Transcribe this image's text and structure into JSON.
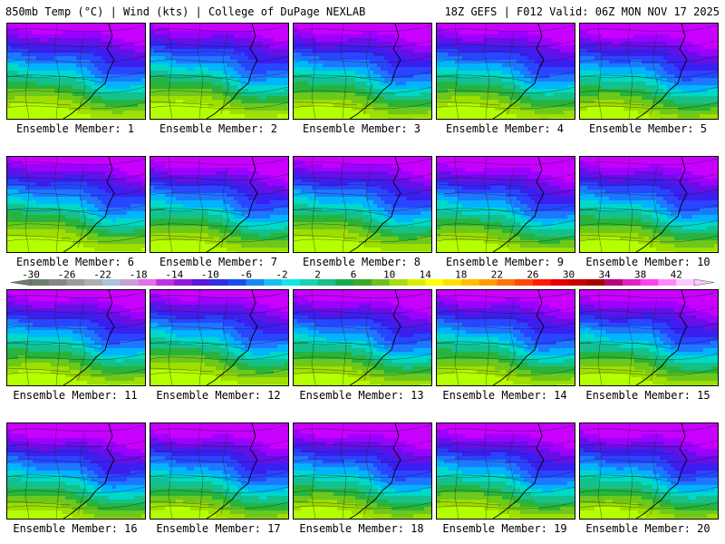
{
  "header": {
    "left": "850mb Temp (°C) | Wind (kts) | College of DuPage NEXLAB",
    "right": "18Z GEFS | F012 Valid: 06Z MON NOV 17 2025"
  },
  "members": [
    "Ensemble Member: 1",
    "Ensemble Member: 2",
    "Ensemble Member: 3",
    "Ensemble Member: 4",
    "Ensemble Member: 5",
    "Ensemble Member: 6",
    "Ensemble Member: 7",
    "Ensemble Member: 8",
    "Ensemble Member: 9",
    "Ensemble Member: 10",
    "Ensemble Member: 11",
    "Ensemble Member: 12",
    "Ensemble Member: 13",
    "Ensemble Member: 14",
    "Ensemble Member: 15",
    "Ensemble Member: 16",
    "Ensemble Member: 17",
    "Ensemble Member: 18",
    "Ensemble Member: 19",
    "Ensemble Member: 20"
  ],
  "colorbar": {
    "labels": [
      "-30",
      "-26",
      "-22",
      "-18",
      "-14",
      "-10",
      "-6",
      "-2",
      "2",
      "6",
      "10",
      "14",
      "18",
      "22",
      "26",
      "30",
      "34",
      "38",
      "42"
    ],
    "colors": [
      "#6e7e6e",
      "#858585",
      "#9a9a9a",
      "#b0b0b0",
      "#a8c4d8",
      "#c8a0d8",
      "#e070e8",
      "#c030e0",
      "#9018e0",
      "#5a18d8",
      "#3030e0",
      "#1850e8",
      "#1888f0",
      "#14c0ee",
      "#10e8e8",
      "#18d2b4",
      "#18c088",
      "#14aa50",
      "#3aa828",
      "#6ec01c",
      "#a8dc10",
      "#d8ee00",
      "#ffff00",
      "#ffe000",
      "#ffc000",
      "#ff9e00",
      "#ff7400",
      "#ff4800",
      "#ff1c00",
      "#e80000",
      "#c80000",
      "#a80000",
      "#b8007a",
      "#e020c0",
      "#ff40f0",
      "#ff88ff",
      "#ffc8ff"
    ]
  },
  "map_palette": [
    "#b4ff00",
    "#9ede00",
    "#6cc81a",
    "#28b43c",
    "#14c08c",
    "#00d8c8",
    "#00b4ff",
    "#1e78ff",
    "#2846ff",
    "#3c1ef0",
    "#6410e6",
    "#9c00ff",
    "#c800ff"
  ],
  "map_field_offsets": [
    0,
    -0.3,
    0.2,
    0.1,
    0.6,
    -0.2,
    0.3,
    -0.1,
    0.5,
    0.2,
    0.1,
    -0.1,
    0.3,
    0.2,
    0.4,
    0.8,
    0.7,
    0.6,
    0.5,
    0.7
  ]
}
